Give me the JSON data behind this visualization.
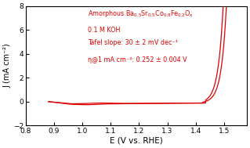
{
  "xlabel": "E (V vs. RHE)",
  "ylabel": "J (mA cm⁻²)",
  "xlim": [
    0.85,
    1.58
  ],
  "ylim": [
    -1.0,
    8.0
  ],
  "xticks": [
    0.8,
    0.9,
    1.0,
    1.1,
    1.2,
    1.3,
    1.4,
    1.5
  ],
  "yticks": [
    -2,
    0,
    2,
    4,
    6,
    8
  ],
  "line_color": "#dd0000",
  "annotation_color": "#dd0000",
  "background_color": "#ffffff",
  "annotation_lines": [
    "Amorphous Ba$_{0.5}$Sr$_{0.5}$Co$_{0.8}$Fe$_{0.2}$O$_x$",
    "0.1 M KOH",
    "Tafel slope: 30 ± 2 mV dec⁻¹",
    "η@1 mA cm⁻²: 0.252 ± 0.004 V"
  ],
  "annotation_fontsize": 5.8
}
